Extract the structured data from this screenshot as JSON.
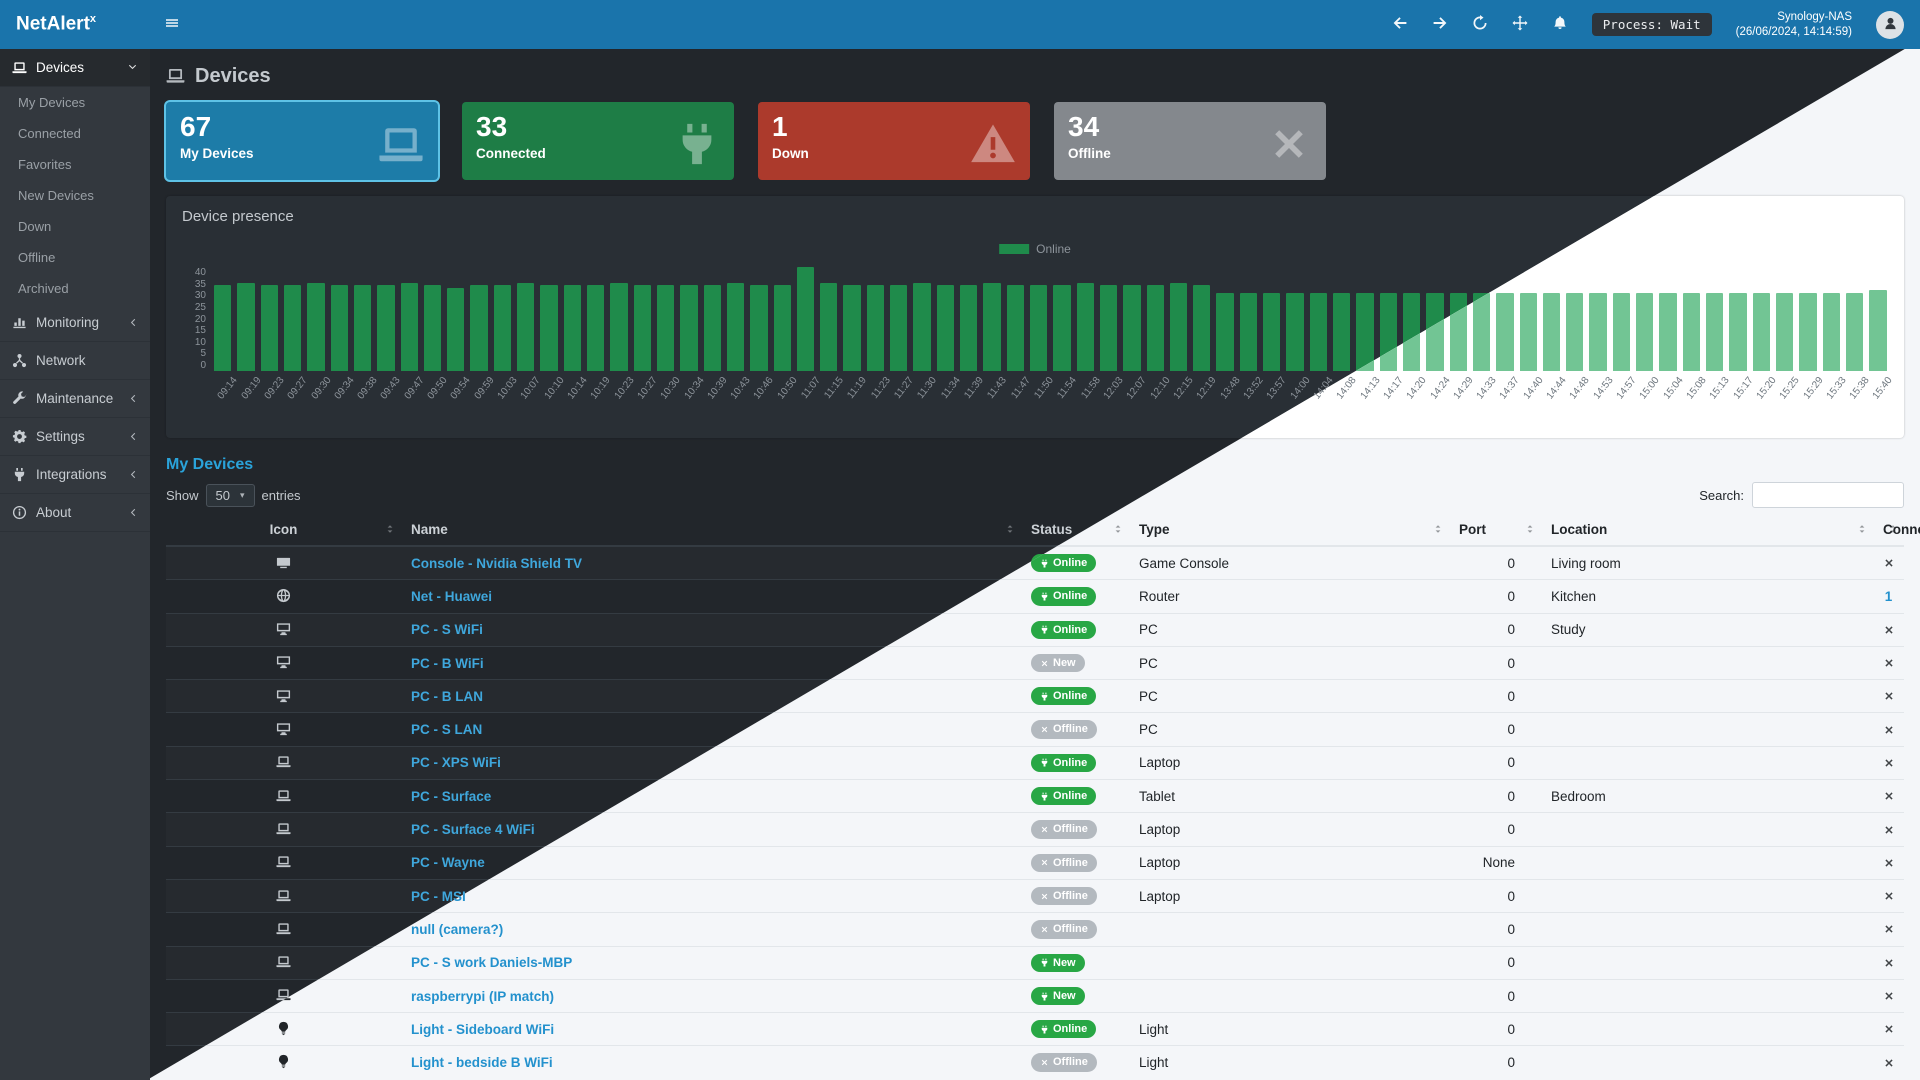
{
  "brand": {
    "name": "NetAlert",
    "sup": "x"
  },
  "navbar": {
    "menu_icon": "menu",
    "icons": [
      "arrow-left",
      "arrow-right",
      "refresh",
      "move",
      "bell"
    ],
    "process_label": "Process: Wait",
    "host_name": "Synology-NAS",
    "host_time": "(26/06/2024, 14:14:59)"
  },
  "sidebar": {
    "items": [
      {
        "label": "Devices",
        "icon": "laptop",
        "chevron": "down",
        "active": true,
        "children": [
          "My Devices",
          "Connected",
          "Favorites",
          "New Devices",
          "Down",
          "Offline",
          "Archived"
        ]
      },
      {
        "label": "Monitoring",
        "icon": "chart-bar",
        "chevron": "left"
      },
      {
        "label": "Network",
        "icon": "network",
        "chevron": null
      },
      {
        "label": "Maintenance",
        "icon": "wrench",
        "chevron": "left"
      },
      {
        "label": "Settings",
        "icon": "gear",
        "chevron": "left"
      },
      {
        "label": "Integrations",
        "icon": "plug",
        "chevron": "left"
      },
      {
        "label": "About",
        "icon": "info",
        "chevron": "left"
      }
    ]
  },
  "page": {
    "title": "Devices",
    "icon": "laptop"
  },
  "cards": [
    {
      "value": "67",
      "label": "My Devices",
      "icon": "laptop",
      "color": "#1d7ca8",
      "highlight": true
    },
    {
      "value": "33",
      "label": "Connected",
      "icon": "plug",
      "color": "#1e7d46",
      "highlight": false
    },
    {
      "value": "1",
      "label": "Down",
      "icon": "warning",
      "color": "#ac3a2c",
      "highlight": false
    },
    {
      "value": "34",
      "label": "Offline",
      "icon": "x",
      "color": "#84888d",
      "highlight": false
    }
  ],
  "presence": {
    "title": "Device presence",
    "legend": "Online"
  },
  "chart_data": {
    "type": "bar",
    "title": "Device presence",
    "legend": [
      "Online"
    ],
    "legend_position": "top-center",
    "grid": false,
    "ylim": [
      0,
      40
    ],
    "yticks": [
      0,
      5,
      10,
      15,
      20,
      25,
      30,
      35,
      40
    ],
    "x": [
      "09:14",
      "09:19",
      "09:23",
      "09:27",
      "09:30",
      "09:34",
      "09:38",
      "09:43",
      "09:47",
      "09:50",
      "09:54",
      "09:59",
      "10:03",
      "10:07",
      "10:10",
      "10:14",
      "10:19",
      "10:23",
      "10:27",
      "10:30",
      "10:34",
      "10:39",
      "10:43",
      "10:46",
      "10:50",
      "11:07",
      "11:15",
      "11:19",
      "11:23",
      "11:27",
      "11:30",
      "11:34",
      "11:39",
      "11:43",
      "11:47",
      "11:50",
      "11:54",
      "11:58",
      "12:03",
      "12:07",
      "12:10",
      "12:15",
      "12:19",
      "13:48",
      "13:52",
      "13:57",
      "14:00",
      "14:04",
      "14:08",
      "14:13",
      "14:17",
      "14:20",
      "14:24",
      "14:29",
      "14:33",
      "14:37",
      "14:40",
      "14:44",
      "14:48",
      "14:53",
      "14:57",
      "15:00",
      "15:04",
      "15:08",
      "15:13",
      "15:17",
      "15:20",
      "15:25",
      "15:29",
      "15:33",
      "15:38",
      "15:40"
    ],
    "series": [
      {
        "name": "Online",
        "values": [
          33,
          34,
          33,
          33,
          34,
          33,
          33,
          33,
          34,
          33,
          32,
          33,
          33,
          34,
          33,
          33,
          33,
          34,
          33,
          33,
          33,
          33,
          34,
          33,
          33,
          40,
          34,
          33,
          33,
          33,
          34,
          33,
          33,
          34,
          33,
          33,
          33,
          34,
          33,
          33,
          33,
          34,
          33,
          30,
          30,
          30,
          30,
          30,
          30,
          30,
          30,
          30,
          30,
          30,
          30,
          30,
          30,
          30,
          30,
          30,
          30,
          30,
          30,
          30,
          30,
          30,
          30,
          30,
          30,
          30,
          30,
          31
        ]
      }
    ],
    "bar_color_dark": "#1f8b4b",
    "bar_color_light": "#72c594"
  },
  "table": {
    "title": "My Devices",
    "show_label": "Show",
    "entries_value": "50",
    "entries_label": "entries",
    "search_label": "Search:",
    "search_value": "",
    "columns": [
      "Icon",
      "Name",
      "Status",
      "Type",
      "Port",
      "Location",
      "Connections"
    ],
    "rows": [
      {
        "icon": "tv",
        "name": "Console - Nvidia Shield TV",
        "status": "Online",
        "status_style": "online",
        "type": "Game Console",
        "port": "0",
        "location": "Living room",
        "connections": "x"
      },
      {
        "icon": "globe",
        "name": "Net - Huawei",
        "status": "Online",
        "status_style": "online",
        "type": "Router",
        "port": "0",
        "location": "Kitchen",
        "connections": "1"
      },
      {
        "icon": "desktop",
        "name": "PC - S WiFi",
        "status": "Online",
        "status_style": "online",
        "type": "PC",
        "port": "0",
        "location": "Study",
        "connections": "x"
      },
      {
        "icon": "desktop",
        "name": "PC - B WiFi",
        "status": "New",
        "status_style": "new-offline",
        "type": "PC",
        "port": "0",
        "location": "",
        "connections": "x"
      },
      {
        "icon": "desktop",
        "name": "PC - B LAN",
        "status": "Online",
        "status_style": "online",
        "type": "PC",
        "port": "0",
        "location": "",
        "connections": "x"
      },
      {
        "icon": "desktop",
        "name": "PC - S LAN",
        "status": "Offline",
        "status_style": "offline",
        "type": "PC",
        "port": "0",
        "location": "",
        "connections": "x"
      },
      {
        "icon": "laptop",
        "name": "PC - XPS WiFi",
        "status": "Online",
        "status_style": "online",
        "type": "Laptop",
        "port": "0",
        "location": "",
        "connections": "x"
      },
      {
        "icon": "laptop",
        "name": "PC - Surface",
        "status": "Online",
        "status_style": "online",
        "type": "Tablet",
        "port": "0",
        "location": "Bedroom",
        "connections": "x"
      },
      {
        "icon": "laptop",
        "name": "PC - Surface 4 WiFi",
        "status": "Offline",
        "status_style": "offline",
        "type": "Laptop",
        "port": "0",
        "location": "",
        "connections": "x"
      },
      {
        "icon": "laptop",
        "name": "PC - Wayne",
        "status": "Offline",
        "status_style": "offline",
        "type": "Laptop",
        "port": "None",
        "location": "",
        "connections": "x"
      },
      {
        "icon": "laptop",
        "name": "PC - MSI",
        "status": "Offline",
        "status_style": "offline",
        "type": "Laptop",
        "port": "0",
        "location": "",
        "connections": "x"
      },
      {
        "icon": "laptop",
        "name": "null (camera?)",
        "status": "Offline",
        "status_style": "offline",
        "type": "",
        "port": "0",
        "location": "",
        "connections": "x"
      },
      {
        "icon": "laptop",
        "name": "PC - S work Daniels-MBP",
        "status": "New",
        "status_style": "new-online",
        "type": "",
        "port": "0",
        "location": "",
        "connections": "x"
      },
      {
        "icon": "laptop",
        "name": "raspberrypi (IP match)",
        "status": "New",
        "status_style": "new-online",
        "type": "",
        "port": "0",
        "location": "",
        "connections": "x"
      },
      {
        "icon": "lightbulb",
        "name": "Light - Sideboard WiFi",
        "status": "Online",
        "status_style": "online",
        "type": "Light",
        "port": "0",
        "location": "",
        "connections": "x"
      },
      {
        "icon": "lightbulb",
        "name": "Light - bedside B WiFi",
        "status": "Offline",
        "status_style": "offline",
        "type": "Light",
        "port": "0",
        "location": "",
        "connections": "x"
      }
    ]
  },
  "colors": {
    "navbar": "#1a74ab",
    "sidebar": "#33383e",
    "online_badge": "#28a745",
    "offline_badge": "#b3b9bf",
    "link": "#2a9fd8",
    "section_title": "#2aa3da"
  }
}
